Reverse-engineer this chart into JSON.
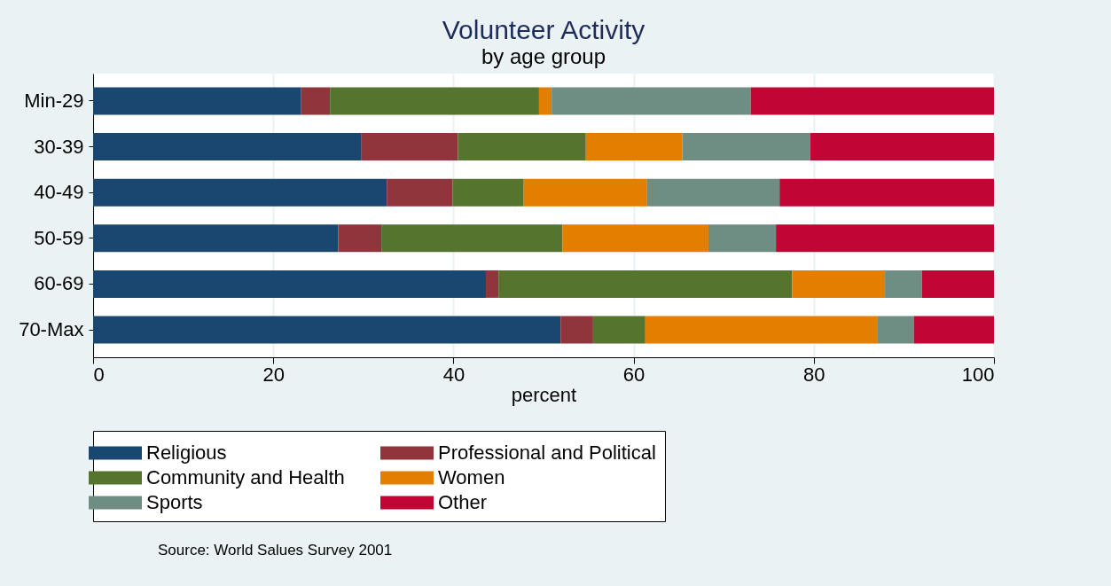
{
  "chart_data": {
    "type": "bar",
    "orientation": "horizontal",
    "stacked": true,
    "title": "Volunteer Activity",
    "subtitle": "by age group",
    "xlabel": "percent",
    "categories": [
      "Min-29",
      "30-39",
      "40-49",
      "50-59",
      "60-69",
      "70-Max"
    ],
    "series": [
      {
        "name": "Religious",
        "color": "#1a476f",
        "values": [
          23.1,
          29.8,
          32.6,
          27.2,
          43.6,
          51.9
        ]
      },
      {
        "name": "Professional and Political",
        "color": "#90353b",
        "values": [
          3.2,
          10.7,
          7.3,
          4.8,
          1.4,
          3.6
        ]
      },
      {
        "name": "Community and Health",
        "color": "#55752f",
        "values": [
          23.2,
          14.2,
          7.9,
          20.1,
          32.6,
          5.8
        ]
      },
      {
        "name": "Women",
        "color": "#e37e00",
        "values": [
          1.4,
          10.7,
          13.7,
          16.2,
          10.3,
          25.8
        ]
      },
      {
        "name": "Sports",
        "color": "#6e8e84",
        "values": [
          22.1,
          14.2,
          14.7,
          7.5,
          4.1,
          4.0
        ]
      },
      {
        "name": "Other",
        "color": "#c10534",
        "values": [
          27.0,
          20.4,
          23.8,
          24.2,
          8.0,
          8.9
        ]
      }
    ],
    "xlim": [
      0,
      100
    ],
    "xticks": [
      0,
      20,
      40,
      60,
      80,
      100
    ],
    "grid": "x",
    "legend": "bottom",
    "annotations": [
      "Source: World Salues Survey 2001"
    ]
  }
}
